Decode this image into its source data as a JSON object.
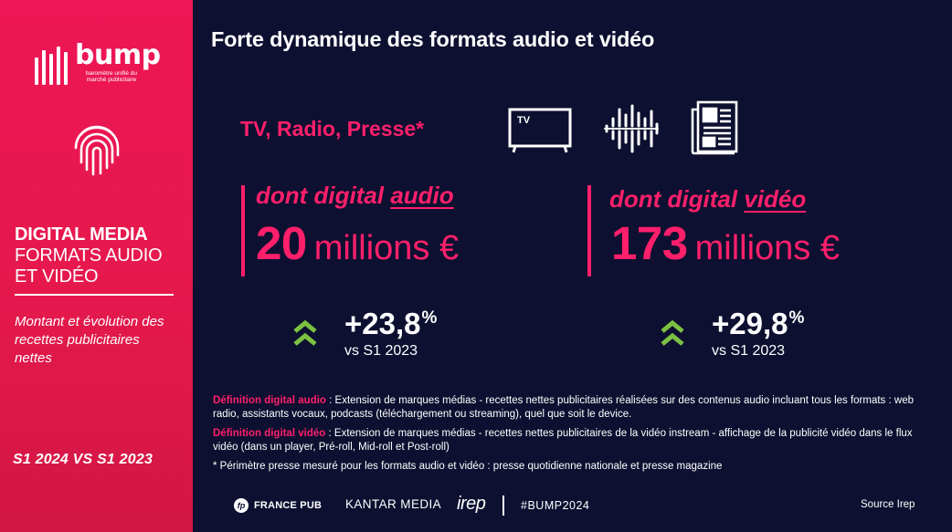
{
  "sidebar": {
    "logo_word": "bump",
    "logo_tagline": "baromètre unifié du marché publicitaire",
    "title_bold": "DIGITAL MEDIA",
    "title_line2": "FORMATS AUDIO",
    "title_line3": "ET VIDÉO",
    "description": "Montant et évolution des recettes publicitaires nettes",
    "period": "S1 2024 VS S1 2023"
  },
  "main": {
    "title": "Forte dynamique des formats audio et vidéo",
    "scope": "TV, Radio, Presse*",
    "icons": [
      "tv-icon",
      "radio-waveform-icon",
      "newspaper-icon"
    ],
    "tv_icon_label": "TV",
    "audio": {
      "label_prefix": "dont digital ",
      "label_keyword": "audio",
      "amount": "20",
      "unit": "millions €",
      "growth": "+23,8",
      "growth_unit": "%",
      "comparison": "vs S1 2023"
    },
    "video": {
      "label_prefix": "dont digital ",
      "label_keyword": "vidéo",
      "amount": "173",
      "unit": "millions €",
      "growth": "+29,8",
      "growth_unit": "%",
      "comparison": "vs S1 2023"
    }
  },
  "definitions": {
    "audio_key": "Définition digital audio",
    "audio_text": " : Extension de marques médias - recettes nettes publicitaires réalisées sur des contenus audio incluant tous les formats : web radio, assistants vocaux, podcasts (téléchargement ou streaming), quel que soit le device.",
    "video_key": "Définition digital vidéo",
    "video_text": " : Extension de marques médias - recettes nettes publicitaires de la vidéo instream - affichage de la publicité vidéo dans le flux vidéo (dans un player, Pré-roll, Mid-roll et Post-roll)",
    "scope_note": "* Périmètre presse mesuré pour les formats audio et vidéo : presse quotidienne nationale et presse magazine"
  },
  "footer": {
    "francepub_badge": "fp",
    "francepub": "FRANCE PUB",
    "kantar": "KANTAR MEDIA",
    "irep": "irep",
    "hashtag": "#BUMP2024",
    "source": "Source Irep"
  },
  "colors": {
    "background": "#0d1030",
    "accent": "#ff1f6b",
    "sidebar": "#e5184c",
    "growth_arrow": "#7cc142"
  }
}
